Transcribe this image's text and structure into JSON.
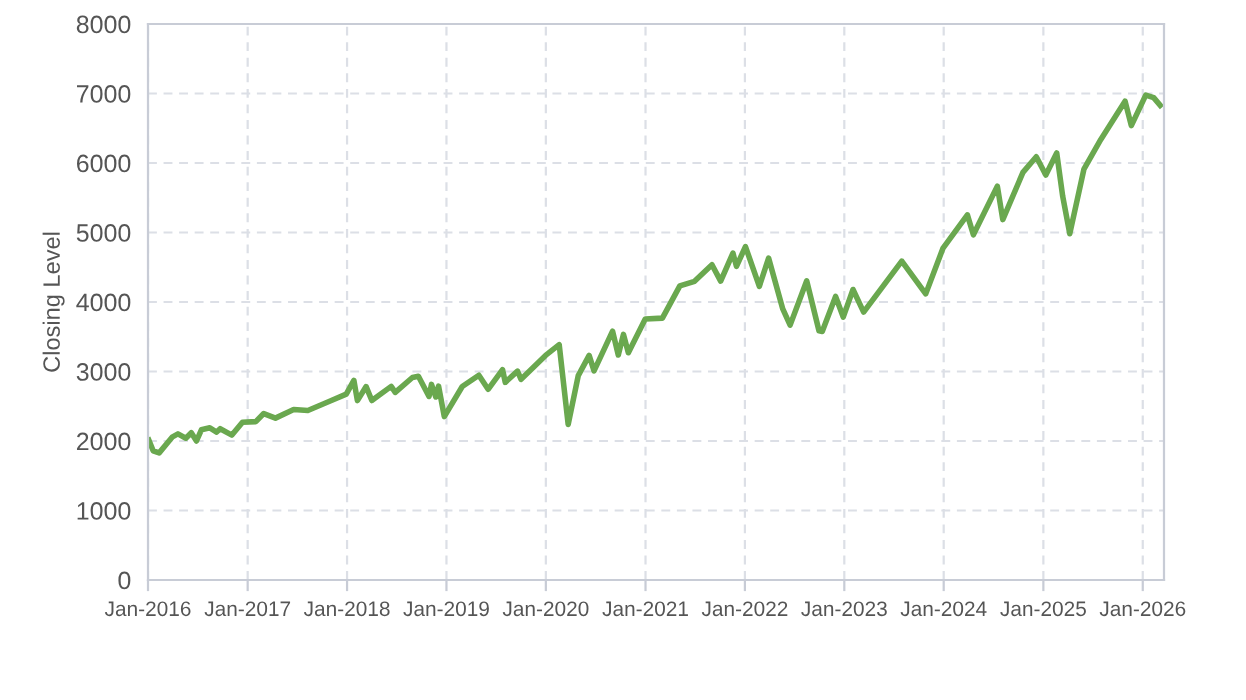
{
  "chart_data": {
    "type": "line",
    "ylabel": "Closing Level",
    "xlim": [
      "2016-01-01",
      "2026-03-20"
    ],
    "ylim": [
      0,
      8000
    ],
    "yticks": [
      0,
      1000,
      2000,
      3000,
      4000,
      5000,
      6000,
      7000,
      8000
    ],
    "xticks": [
      {
        "value": "2016-01-01",
        "label": "Jan-2016"
      },
      {
        "value": "2017-01-01",
        "label": "Jan-2017"
      },
      {
        "value": "2018-01-01",
        "label": "Jan-2018"
      },
      {
        "value": "2019-01-01",
        "label": "Jan-2019"
      },
      {
        "value": "2020-01-01",
        "label": "Jan-2020"
      },
      {
        "value": "2021-01-01",
        "label": "Jan-2021"
      },
      {
        "value": "2022-01-01",
        "label": "Jan-2022"
      },
      {
        "value": "2023-01-01",
        "label": "Jan-2023"
      },
      {
        "value": "2024-01-01",
        "label": "Jan-2024"
      },
      {
        "value": "2025-01-01",
        "label": "Jan-2025"
      },
      {
        "value": "2026-01-01",
        "label": "Jan-2026"
      }
    ],
    "grid": true,
    "line_style": "solid",
    "marker": "none",
    "x": [
      "2016-01-04",
      "2016-01-20",
      "2016-02-11",
      "2016-03-31",
      "2016-04-20",
      "2016-05-19",
      "2016-06-08",
      "2016-06-27",
      "2016-07-15",
      "2016-08-15",
      "2016-09-09",
      "2016-09-22",
      "2016-11-04",
      "2016-12-13",
      "2017-01-31",
      "2017-03-01",
      "2017-04-13",
      "2017-06-19",
      "2017-08-10",
      "2017-10-31",
      "2017-12-29",
      "2018-01-26",
      "2018-02-08",
      "2018-03-12",
      "2018-04-02",
      "2018-06-12",
      "2018-06-27",
      "2018-08-29",
      "2018-09-20",
      "2018-10-29",
      "2018-11-07",
      "2018-11-23",
      "2018-12-03",
      "2018-12-24",
      "2019-02-28",
      "2019-04-30",
      "2019-06-03",
      "2019-07-26",
      "2019-08-05",
      "2019-09-19",
      "2019-10-02",
      "2019-12-31",
      "2020-02-19",
      "2020-03-23",
      "2020-04-29",
      "2020-06-08",
      "2020-06-26",
      "2020-09-02",
      "2020-09-23",
      "2020-10-12",
      "2020-10-30",
      "2020-12-31",
      "2021-03-04",
      "2021-05-07",
      "2021-06-30",
      "2021-09-02",
      "2021-10-04",
      "2021-11-18",
      "2021-12-01",
      "2022-01-03",
      "2022-02-23",
      "2022-03-29",
      "2022-05-20",
      "2022-06-16",
      "2022-08-16",
      "2022-09-30",
      "2022-10-12",
      "2022-11-30",
      "2022-12-28",
      "2023-02-02",
      "2023-03-13",
      "2023-07-31",
      "2023-10-27",
      "2023-12-29",
      "2024-03-28",
      "2024-04-19",
      "2024-07-16",
      "2024-08-05",
      "2024-10-18",
      "2024-12-06",
      "2025-01-10",
      "2025-02-19",
      "2025-03-13",
      "2025-04-08",
      "2025-05-30",
      "2025-07-31",
      "2025-10-28",
      "2025-11-20",
      "2026-01-12",
      "2026-02-10",
      "2026-03-06"
    ],
    "series": [
      {
        "color": "#6aa84f",
        "values": [
          2012,
          1859,
          1829,
          2060,
          2102,
          2040,
          2119,
          2000,
          2161,
          2190,
          2128,
          2177,
          2085,
          2271,
          2279,
          2395,
          2329,
          2453,
          2438,
          2575,
          2674,
          2873,
          2581,
          2783,
          2582,
          2786,
          2699,
          2914,
          2931,
          2641,
          2814,
          2633,
          2790,
          2351,
          2784,
          2946,
          2744,
          3026,
          2844,
          3006,
          2887,
          3231,
          3386,
          2237,
          2940,
          3232,
          3009,
          3580,
          3237,
          3534,
          3270,
          3756,
          3768,
          4232,
          4298,
          4537,
          4300,
          4704,
          4513,
          4797,
          4226,
          4632,
          3901,
          3667,
          4305,
          3586,
          3577,
          4080,
          3783,
          4180,
          3855,
          4589,
          4117,
          4770,
          5254,
          4967,
          5667,
          5186,
          5865,
          6090,
          5827,
          6144,
          5521,
          4982,
          5912,
          6339,
          6890,
          6538,
          6977,
          6940,
          6830
        ]
      }
    ]
  }
}
